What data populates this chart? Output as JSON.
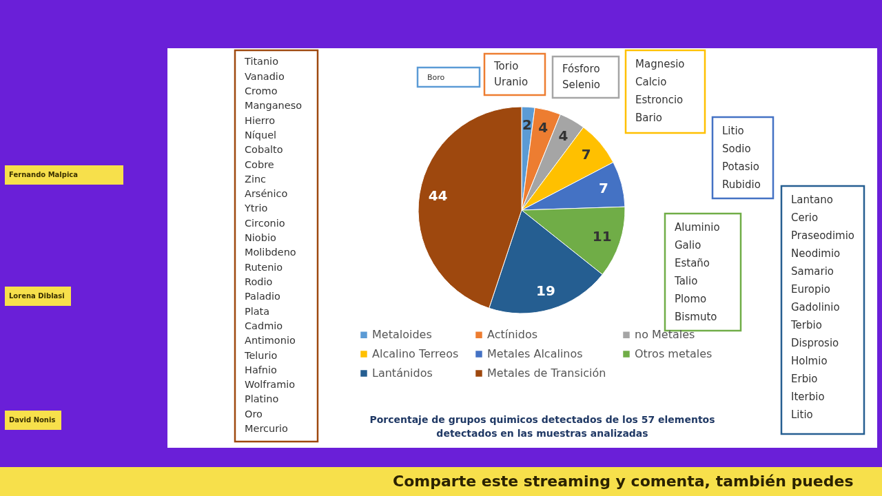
{
  "chart_data": {
    "type": "pie",
    "title": "Porcentaje de grupos quimicos detectados de los 57 elementos\ndetectados  en las muestras analizadas",
    "categories": [
      "Metaloides",
      "Actínidos",
      "no Metales",
      "Alcalino Terreos",
      "Metales Alcalinos",
      "Otros metales",
      "Lantánidos",
      "Metales de Transición"
    ],
    "values": [
      2,
      4,
      4,
      7,
      7,
      11,
      19,
      44
    ],
    "colors": [
      "#5b9bd5",
      "#ed7d31",
      "#a5a5a5",
      "#ffc000",
      "#4472c4",
      "#70ad47",
      "#255e91",
      "#9e480e"
    ],
    "data_labels": true,
    "legend": "bottom",
    "annotations": [
      "Boro",
      "Torio\nUranio",
      "Fósforo\nSelenio",
      "Magnesio\nCalcio\nEstroncio\nBario",
      "Litio\nSodio\nPotasio\nRubidio",
      "Aluminio\nGalio\nEstaño\nTalio\nPlomo\nBismuto",
      "Lantano\nCerio\nPraseodimio\nNeodimio\nSamario\nEuropio\nGadolinio\nTerbio\nDisprosio\nHolmio\nErbio\nIterbio\nLitio",
      "Titanio\nVanadio\nCromo\nManganeso\nHierro\nNíquel\nCobalto\nCobre\nZinc\nArsénico\nYtrio\nCirconio\nNiobio\nMolibdeno\nRutenio\nRodio\nPaladio\nPlata\nCadmio\nAntimonio\nTelurio\nHafnio\nWolframio\nPlatino\nOro\nMercurio",
      "Fernando Malpica",
      "Lorena Diblasi",
      "David Nonis",
      "Comparte este streaming y comenta, también puedes"
    ]
  }
}
